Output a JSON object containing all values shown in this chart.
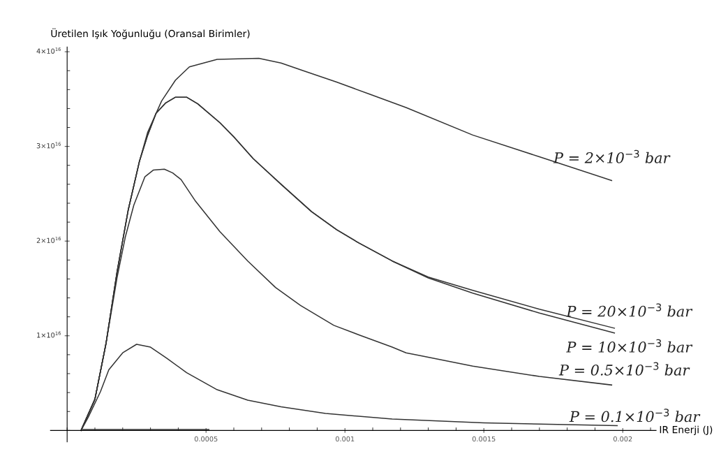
{
  "chart_data": {
    "type": "line",
    "ylabel": "Üretilen Işık Yoğunluğu (Oransal Birimler)",
    "xlabel": "IR Enerji (J)",
    "xlim": [
      -6e-05,
      0.00212
    ],
    "ylim": [
      -1200000000000000.0,
      4.05e+16
    ],
    "xticks": [
      0.0005,
      0.001,
      0.0015,
      0.002
    ],
    "yticks": [
      {
        "value": 1e+16,
        "label": "1×10$^{16}$"
      },
      {
        "value": 2e+16,
        "label": "2×10$^{16}$"
      },
      {
        "value": 3e+16,
        "label": "3×10$^{16}$"
      },
      {
        "value": 4e+16,
        "label": "4×10$^{16}$"
      }
    ],
    "grid": false,
    "legend": false,
    "marker": "none",
    "line_style": "solid",
    "series": [
      {
        "name": "P = 2×10$^{−3}$ bar",
        "color": "#333333",
        "x": [
          5e-05,
          0.0001,
          0.00014,
          0.00018,
          0.00022,
          0.00026,
          0.00029,
          0.00034,
          0.00039,
          0.00044,
          0.00054,
          0.00069,
          0.00077,
          0.00085,
          0.00097,
          0.00109,
          0.00122,
          0.00146,
          0.0017,
          0.00196
        ],
        "values": [
          0,
          3300000000000000.0,
          9200000000000000.0,
          1.68e+16,
          2.33e+16,
          2.84e+16,
          3.15e+16,
          3.48e+16,
          3.7e+16,
          3.84e+16,
          3.92e+16,
          3.93e+16,
          3.88e+16,
          3.8e+16,
          3.68e+16,
          3.55e+16,
          3.41e+16,
          3.12e+16,
          2.89e+16,
          2.64e+16
        ]
      },
      {
        "name": "P = 20×10$^{−3}$ bar",
        "color": "#333333",
        "x": [
          5e-05,
          0.0001,
          0.00014,
          0.00018,
          0.00022,
          0.00026,
          0.00029,
          0.00032,
          0.000355,
          0.00039,
          0.00043,
          0.00047,
          0.00055,
          0.0006,
          0.00067,
          0.00077,
          0.00088,
          0.00097,
          0.00105,
          0.00117,
          0.0013,
          0.00146,
          0.0017,
          0.00197
        ],
        "values": [
          0,
          3300000000000000.0,
          9200000000000000.0,
          1.68e+16,
          2.33e+16,
          2.84e+16,
          3.12e+16,
          3.35e+16,
          3.46e+16,
          3.52e+16,
          3.52e+16,
          3.45e+16,
          3.25e+16,
          3.1e+16,
          2.87e+16,
          2.6e+16,
          2.31e+16,
          2.12e+16,
          1.98e+16,
          1.79e+16,
          1.62e+16,
          1.48e+16,
          1.28e+16,
          1.08e+16
        ]
      },
      {
        "name": "P = 10×10$^{−3}$ bar",
        "color": "#333333",
        "x": [
          5e-05,
          0.0001,
          0.00014,
          0.00018,
          0.00022,
          0.00026,
          0.00029,
          0.00032,
          0.000355,
          0.00039,
          0.00043,
          0.00047,
          0.00055,
          0.0006,
          0.00067,
          0.00077,
          0.00088,
          0.00097,
          0.00105,
          0.00117,
          0.0013,
          0.00146,
          0.0017,
          0.00197
        ],
        "values": [
          0,
          3300000000000000.0,
          9200000000000000.0,
          1.68e+16,
          2.33e+16,
          2.84e+16,
          3.12e+16,
          3.35e+16,
          3.46e+16,
          3.52e+16,
          3.52e+16,
          3.45e+16,
          3.25e+16,
          3.1e+16,
          2.87e+16,
          2.6e+16,
          2.31e+16,
          2.12e+16,
          1.98e+16,
          1.79e+16,
          1.61e+16,
          1.45e+16,
          1.24e+16,
          1.03e+16
        ]
      },
      {
        "name": "P = 0.5×10$^{−3}$ bar",
        "color": "#333333",
        "x": [
          5e-05,
          0.0001,
          0.00014,
          0.00018,
          0.00021,
          0.00024,
          0.00028,
          0.00031,
          0.00035,
          0.00038,
          0.00041,
          0.00046,
          0.00055,
          0.00065,
          0.00075,
          0.00084,
          0.00096,
          0.00105,
          0.00117,
          0.00122,
          0.00146,
          0.0017,
          0.00196
        ],
        "values": [
          0,
          3300000000000000.0,
          9200000000000000.0,
          1.62e+16,
          2.05e+16,
          2.38e+16,
          2.68e+16,
          2.75e+16,
          2.76e+16,
          2.72e+16,
          2.65e+16,
          2.43e+16,
          2.1e+16,
          1.79e+16,
          1.51e+16,
          1.32e+16,
          1.11e+16,
          1.01e+16,
          8800000000000000.0,
          8200000000000000.0,
          6800000000000000.0,
          5700000000000000.0,
          4800000000000000.0
        ]
      },
      {
        "name": "P = 0.1×10$^{−3}$ bar",
        "color": "#333333",
        "x": [
          5e-05,
          7.6e-05,
          0.00012,
          0.00015,
          0.0002,
          0.00025,
          0.0003,
          0.00036,
          0.00043,
          0.00054,
          0.00065,
          0.00077,
          0.00093,
          0.00117,
          0.0015,
          0.00198
        ],
        "values": [
          0,
          1400000000000000.0,
          4100000000000000.0,
          6400000000000000.0,
          8200000000000000.0,
          9100000000000000.0,
          8800000000000000.0,
          7600000000000000.0,
          6100000000000000.0,
          4300000000000000.0,
          3200000000000000.0,
          2500000000000000.0,
          1800000000000000.0,
          1200000000000000.0,
          800000000000000.0,
          500000000000000.0
        ]
      },
      {
        "color": "#333333",
        "x": [
          5.7e-05,
          0.00051
        ],
        "values": [
          100000000000000.0,
          100000000000000.0
        ]
      }
    ]
  }
}
